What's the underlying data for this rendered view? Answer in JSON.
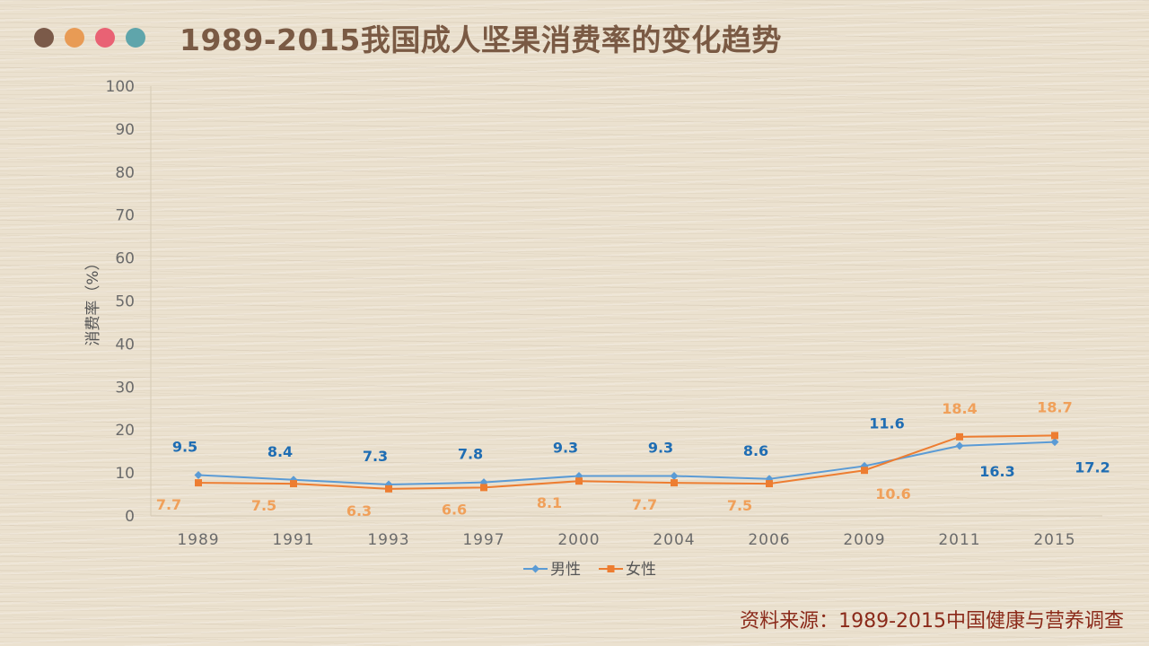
{
  "header": {
    "title": "1989-2015我国成人坚果消费率的变化趋势",
    "dots": [
      {
        "name": "brown",
        "color": "#7b5a49"
      },
      {
        "name": "orange",
        "color": "#e89b55"
      },
      {
        "name": "pink",
        "color": "#e96274"
      },
      {
        "name": "teal",
        "color": "#5fa5ab"
      }
    ]
  },
  "source": "资料来源：1989-2015中国健康与营养调查",
  "chart_data": {
    "type": "line",
    "title": "1989-2015我国成人坚果消费率的变化趋势",
    "ylabel": "消费率（%）",
    "xlabel": "",
    "ylim": [
      0,
      100
    ],
    "yticks": [
      0,
      10,
      20,
      30,
      40,
      50,
      60,
      70,
      80,
      90,
      100
    ],
    "categories": [
      "1989",
      "1991",
      "1993",
      "1997",
      "2000",
      "2004",
      "2006",
      "2009",
      "2011",
      "2015"
    ],
    "series": [
      {
        "name": "男性",
        "color": "#5b9bd5",
        "label_color": "#1f6db3",
        "marker": "diamond",
        "values": [
          9.5,
          8.4,
          7.3,
          7.8,
          9.3,
          9.3,
          8.6,
          11.6,
          16.3,
          17.2
        ]
      },
      {
        "name": "女性",
        "color": "#ed7d31",
        "label_color": "#f0a05a",
        "marker": "square",
        "values": [
          7.7,
          7.5,
          6.3,
          6.6,
          8.1,
          7.7,
          7.5,
          10.6,
          18.4,
          18.7
        ]
      }
    ],
    "grid": false,
    "legend": "bottom"
  }
}
